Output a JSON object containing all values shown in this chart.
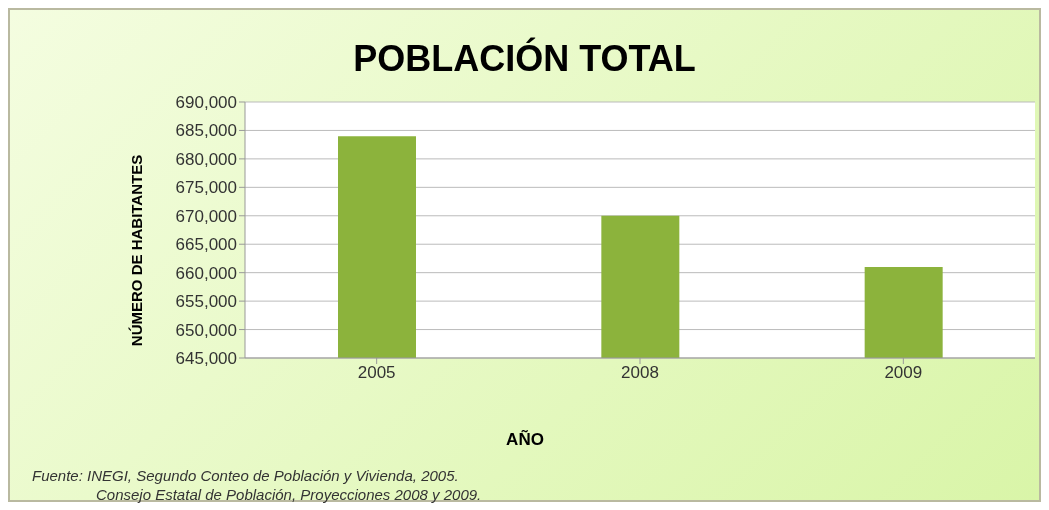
{
  "chart_data": {
    "type": "bar",
    "title": "POBLACIÓN TOTAL",
    "xlabel": "AÑO",
    "ylabel": "NÚMERO DE HABITANTES",
    "categories": [
      "2005",
      "2008",
      "2009"
    ],
    "values": [
      684000,
      670000,
      661000
    ],
    "color": "#8cb33c",
    "ylim": [
      645000,
      690000
    ],
    "yticks": [
      {
        "value": 645000,
        "label": "645,000"
      },
      {
        "value": 650000,
        "label": "650,000"
      },
      {
        "value": 655000,
        "label": "655,000"
      },
      {
        "value": 660000,
        "label": "660,000"
      },
      {
        "value": 665000,
        "label": "665,000"
      },
      {
        "value": 670000,
        "label": "670,000"
      },
      {
        "value": 675000,
        "label": "675,000"
      },
      {
        "value": 680000,
        "label": "680,000"
      },
      {
        "value": 685000,
        "label": "685,000"
      },
      {
        "value": 690000,
        "label": "690,000"
      }
    ],
    "grid": "y",
    "annotations": [
      "Fuente:  INEGI, Segundo Conteo de Población y Vivienda, 2005.",
      "Consejo Estatal de Población, Proyecciones 2008 y 2009."
    ]
  }
}
